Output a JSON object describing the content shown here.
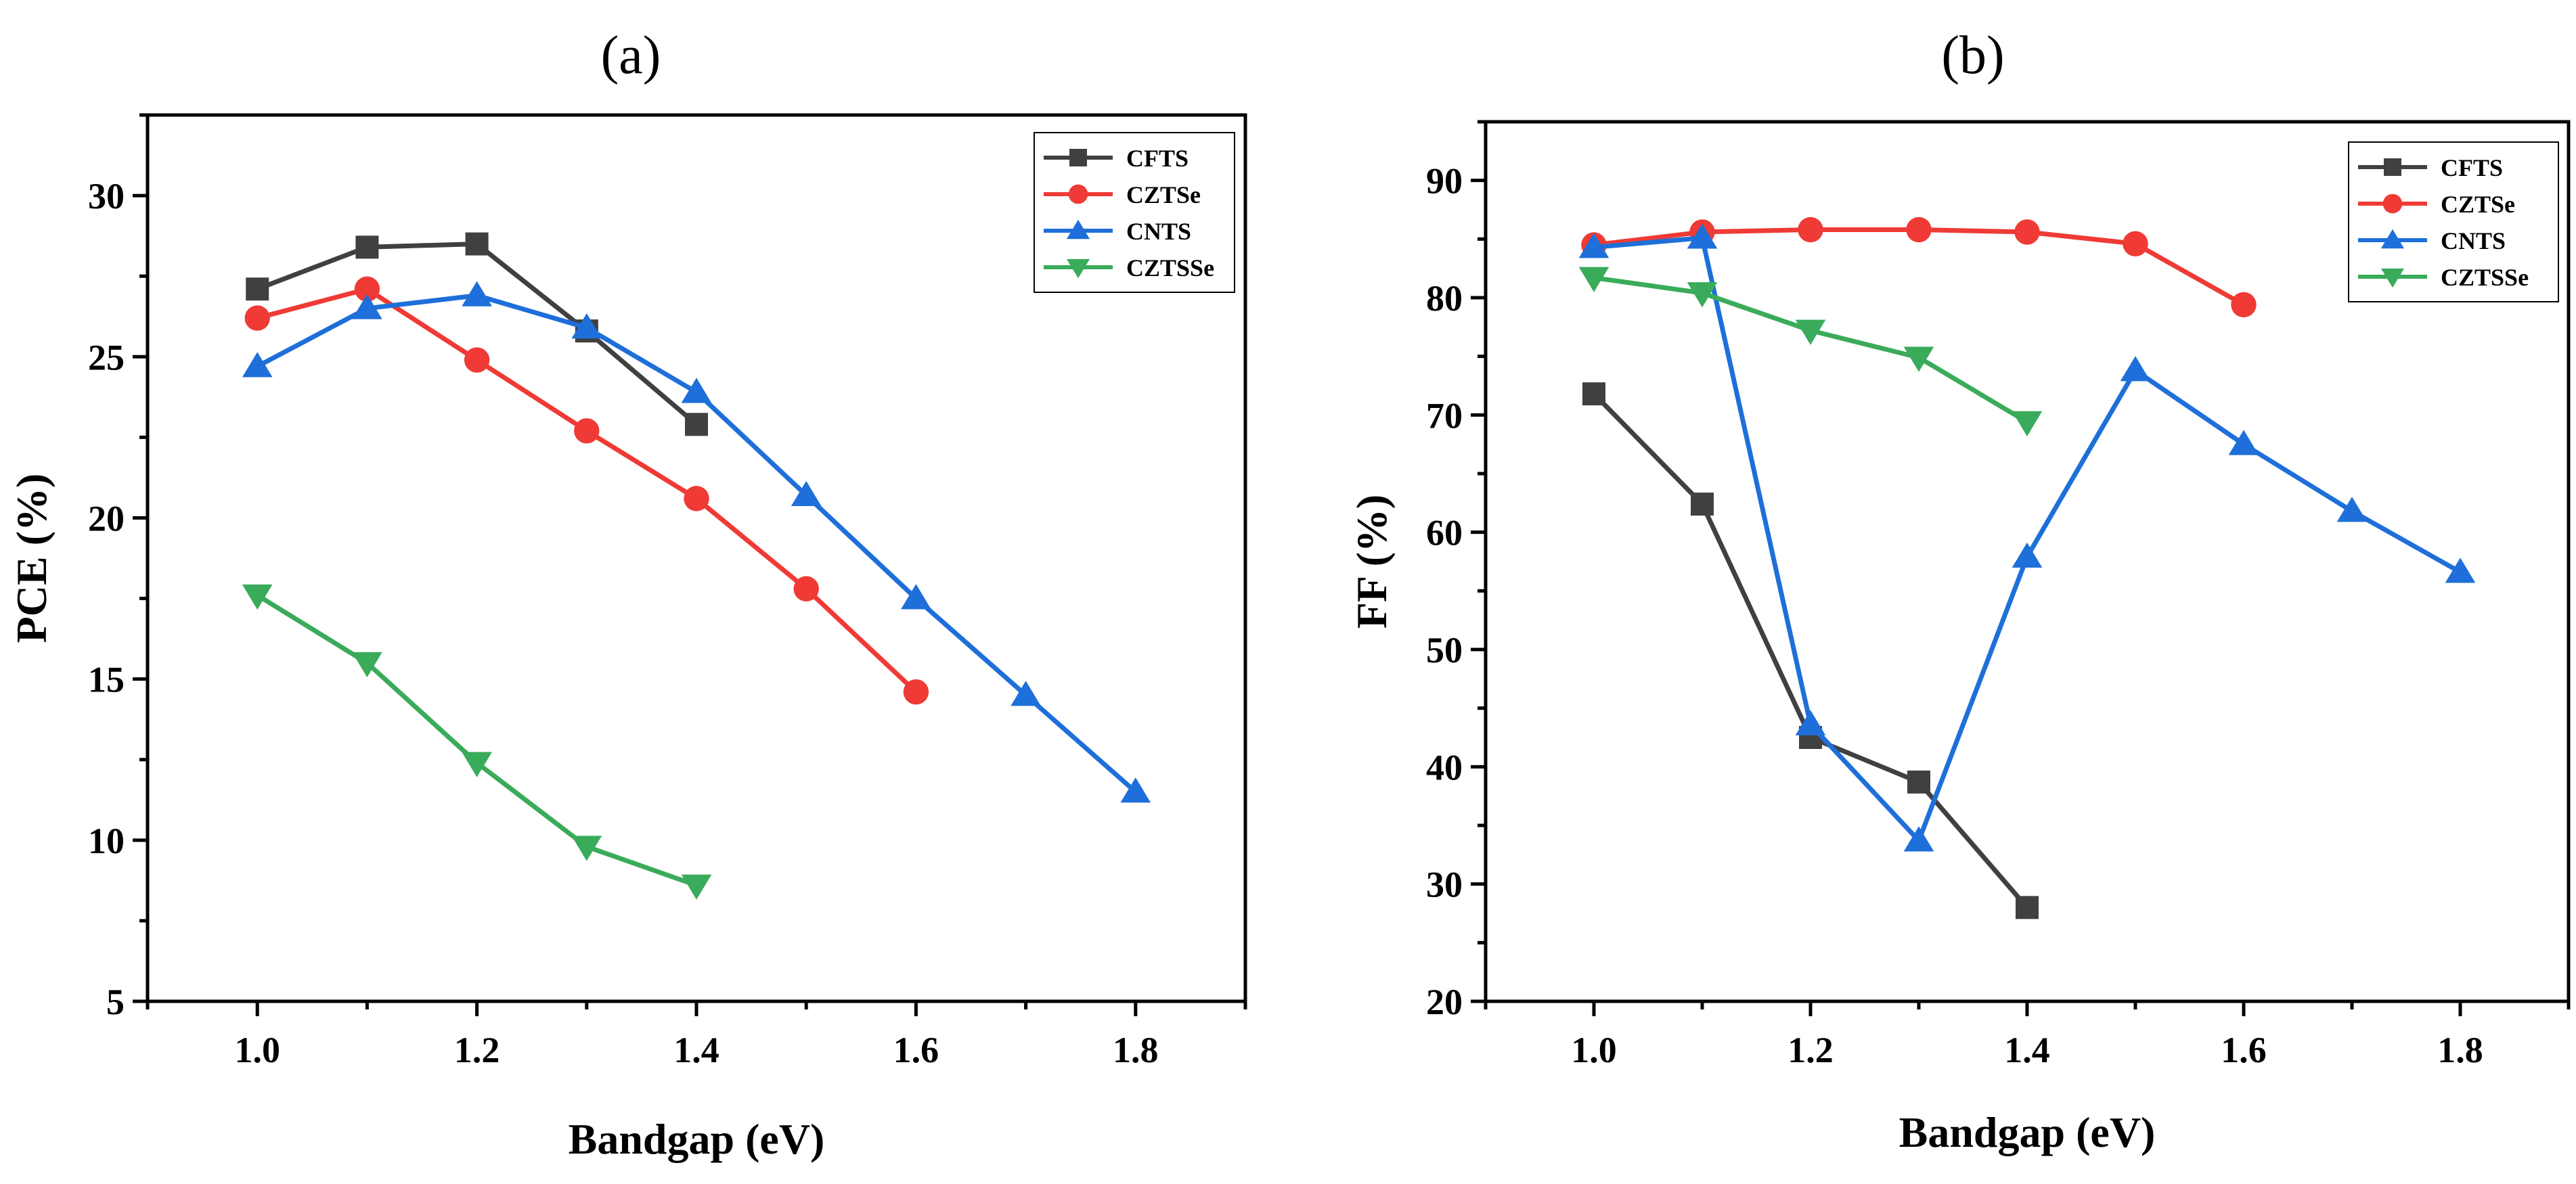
{
  "chart_data": [
    {
      "type": "line",
      "title": "(a)",
      "xlabel": "Bandgap (eV)",
      "ylabel": "PCE (%)",
      "xlim": [
        0.9,
        1.9
      ],
      "ylim": [
        5,
        32.5
      ],
      "xticks": [
        1.0,
        1.2,
        1.4,
        1.6,
        1.8
      ],
      "xtick_labels": [
        "1.0",
        "1.2",
        "1.4",
        "1.6",
        "1.8"
      ],
      "yticks": [
        5,
        10,
        15,
        20,
        25,
        30
      ],
      "ytick_labels": [
        "5",
        "10",
        "15",
        "20",
        "25",
        "30"
      ],
      "legend_position": "top-right",
      "series": [
        {
          "name": "CFTS",
          "color": "#404040",
          "marker": "square",
          "x": [
            1.0,
            1.1,
            1.2,
            1.3,
            1.4
          ],
          "values": [
            27.1,
            28.4,
            28.5,
            25.8,
            22.9
          ]
        },
        {
          "name": "CZTSe",
          "color": "#ef3a35",
          "marker": "circle",
          "x": [
            1.0,
            1.1,
            1.2,
            1.3,
            1.4,
            1.5,
            1.6
          ],
          "values": [
            26.2,
            27.1,
            24.9,
            22.7,
            20.6,
            17.8,
            14.6
          ]
        },
        {
          "name": "CNTS",
          "color": "#1e6fd9",
          "marker": "triangle-up",
          "x": [
            1.0,
            1.1,
            1.2,
            1.3,
            1.4,
            1.5,
            1.6,
            1.7,
            1.8
          ],
          "values": [
            24.7,
            26.5,
            26.9,
            25.9,
            23.9,
            20.7,
            17.5,
            14.5,
            11.5
          ]
        },
        {
          "name": "CZTSSe",
          "color": "#3aab5a",
          "marker": "triangle-down",
          "x": [
            1.0,
            1.1,
            1.2,
            1.3,
            1.4
          ],
          "values": [
            17.6,
            15.5,
            12.4,
            9.8,
            8.6
          ]
        }
      ]
    },
    {
      "type": "line",
      "title": "(b)",
      "xlabel": "Bandgap (eV)",
      "ylabel": "FF (%)",
      "xlim": [
        0.9,
        1.9
      ],
      "ylim": [
        20,
        95
      ],
      "xticks": [
        1.0,
        1.2,
        1.4,
        1.6,
        1.8
      ],
      "xtick_labels": [
        "1.0",
        "1.2",
        "1.4",
        "1.6",
        "1.8"
      ],
      "yticks": [
        20,
        30,
        40,
        50,
        60,
        70,
        80,
        90
      ],
      "ytick_labels": [
        "20",
        "30",
        "40",
        "50",
        "60",
        "70",
        "80",
        "90"
      ],
      "legend_position": "top-right",
      "series": [
        {
          "name": "CFTS",
          "color": "#404040",
          "marker": "square",
          "x": [
            1.0,
            1.1,
            1.2,
            1.3,
            1.4
          ],
          "values": [
            71.8,
            62.4,
            42.5,
            38.7,
            28.0
          ]
        },
        {
          "name": "CZTSe",
          "color": "#ef3a35",
          "marker": "circle",
          "x": [
            1.0,
            1.1,
            1.2,
            1.3,
            1.4,
            1.5,
            1.6
          ],
          "values": [
            84.5,
            85.6,
            85.8,
            85.8,
            85.6,
            84.6,
            79.4
          ]
        },
        {
          "name": "CNTS",
          "color": "#1e6fd9",
          "marker": "triangle-up",
          "x": [
            1.0,
            1.1,
            1.2,
            1.3,
            1.4,
            1.5,
            1.6,
            1.7,
            1.8
          ],
          "values": [
            84.3,
            85.1,
            43.6,
            33.7,
            57.9,
            73.8,
            67.5,
            61.8,
            56.6
          ]
        },
        {
          "name": "CZTSSe",
          "color": "#3aab5a",
          "marker": "triangle-down",
          "x": [
            1.0,
            1.1,
            1.2,
            1.3,
            1.4
          ],
          "values": [
            81.7,
            80.4,
            77.2,
            74.9,
            69.4
          ]
        }
      ]
    }
  ]
}
